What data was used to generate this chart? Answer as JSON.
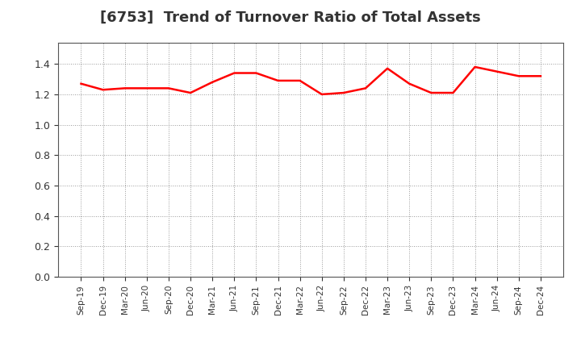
{
  "title": "[6753]  Trend of Turnover Ratio of Total Assets",
  "title_fontsize": 13,
  "title_color": "#333333",
  "line_color": "#ff0000",
  "line_width": 1.8,
  "background_color": "#ffffff",
  "grid_color": "#999999",
  "ylim": [
    0.0,
    1.54
  ],
  "yticks": [
    0.0,
    0.2,
    0.4,
    0.6,
    0.8,
    1.0,
    1.2,
    1.4
  ],
  "labels": [
    "Sep-19",
    "Dec-19",
    "Mar-20",
    "Jun-20",
    "Sep-20",
    "Dec-20",
    "Mar-21",
    "Jun-21",
    "Sep-21",
    "Dec-21",
    "Mar-22",
    "Jun-22",
    "Sep-22",
    "Dec-22",
    "Mar-23",
    "Jun-23",
    "Sep-23",
    "Dec-23",
    "Mar-24",
    "Jun-24",
    "Sep-24",
    "Dec-24"
  ],
  "values": [
    1.27,
    1.23,
    1.24,
    1.24,
    1.24,
    1.21,
    1.28,
    1.34,
    1.34,
    1.29,
    1.29,
    1.2,
    1.21,
    1.24,
    1.37,
    1.27,
    1.21,
    1.21,
    1.38,
    1.35,
    1.32,
    1.32
  ]
}
